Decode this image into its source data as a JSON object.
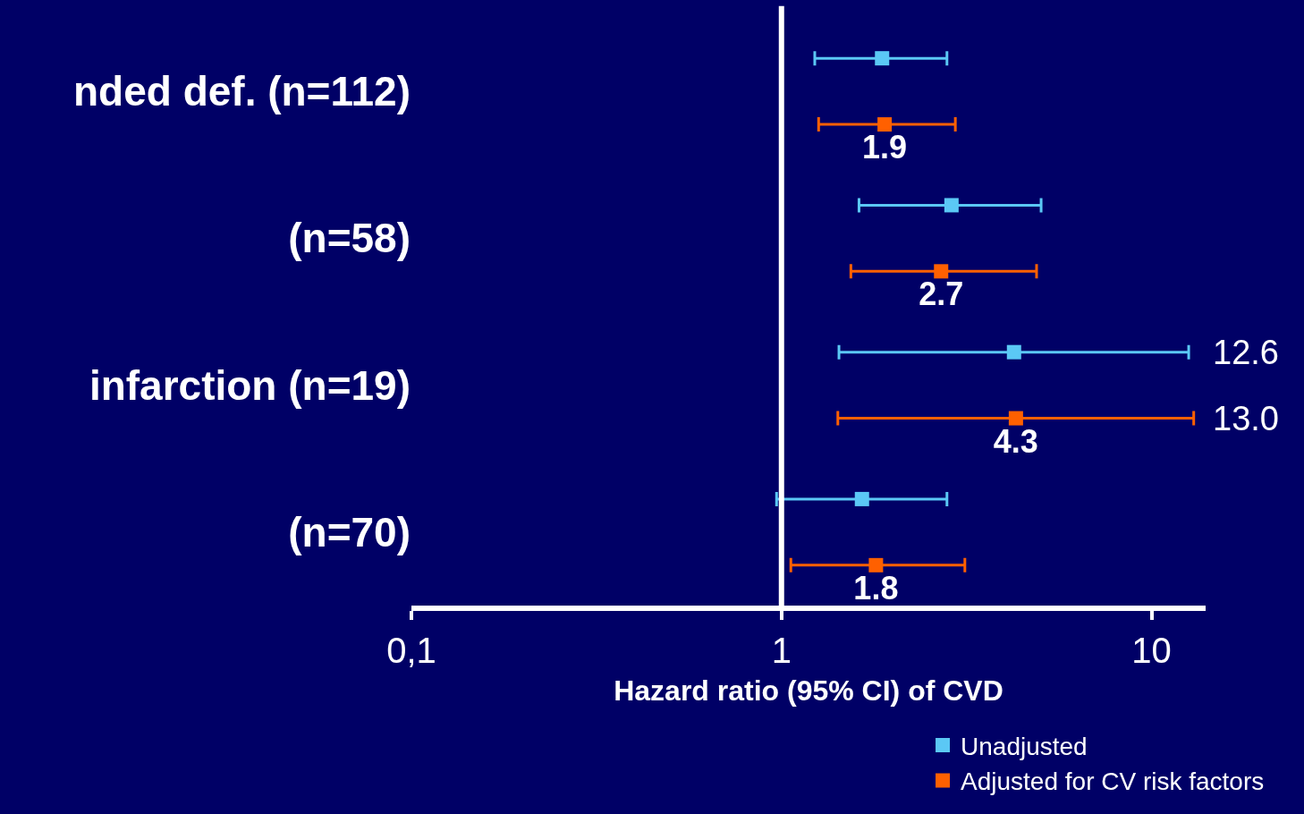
{
  "chart_data": {
    "type": "scatter",
    "orientation": "horizontal",
    "categories": [
      "nded def. (n=112)",
      "(n=58)",
      "infarction (n=19)",
      "(n=70)"
    ],
    "series": [
      {
        "name": "Unadjusted",
        "color": "#5bc8f5",
        "values": [
          1.87,
          2.88,
          4.25,
          1.65
        ],
        "errors": [
          [
            1.23,
            2.8
          ],
          [
            1.62,
            5.03
          ],
          [
            1.43,
            12.6
          ],
          [
            0.97,
            2.8
          ]
        ]
      },
      {
        "name": "Adjusted for CV risk factors",
        "color": "#ff6000",
        "values": [
          1.9,
          2.7,
          4.3,
          1.8
        ],
        "errors": [
          [
            1.26,
            2.95
          ],
          [
            1.54,
            4.89
          ],
          [
            1.42,
            13.0
          ],
          [
            1.06,
            3.13
          ]
        ],
        "value_labels": [
          "1.9",
          "2.7",
          "4.3",
          "1.8"
        ]
      }
    ],
    "xlabel": "Hazard ratio (95% CI) of CVD",
    "xlim": [
      0.1,
      14
    ],
    "xticks": [
      {
        "value": 0.1,
        "label": "0,1"
      },
      1,
      10
    ],
    "log": "x",
    "ref_lines": [
      {
        "axis": "x",
        "value": 1,
        "color": "#ffffff"
      }
    ],
    "annotations": [
      "12.6",
      "13.0"
    ],
    "marker": "square",
    "grid": false,
    "legend": "bottom right"
  }
}
